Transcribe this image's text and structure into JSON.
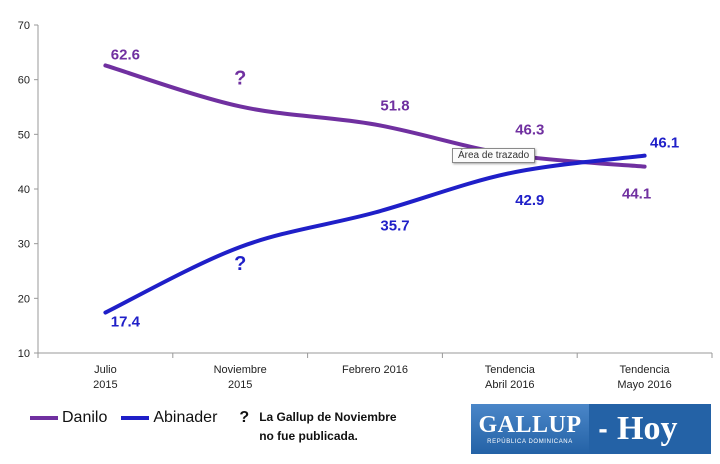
{
  "chart_data": {
    "type": "line",
    "categories": [
      [
        "Julio",
        "2015"
      ],
      [
        "Noviembre",
        "2015"
      ],
      [
        "Febrero 2016"
      ],
      [
        "Tendencia",
        "Abril 2016"
      ],
      [
        "Tendencia",
        "Mayo 2016"
      ]
    ],
    "series": [
      {
        "name": "Danilo",
        "color": "#7030a0",
        "values": [
          62.6,
          55.1,
          51.8,
          46.3,
          44.1
        ],
        "labels": [
          "62.6",
          "?",
          "51.8",
          "46.3",
          "44.1"
        ]
      },
      {
        "name": "Abinader",
        "color": "#1f1fc8",
        "values": [
          17.4,
          29.4,
          35.7,
          42.9,
          46.1
        ],
        "labels": [
          "17.4",
          "?",
          "35.7",
          "42.9",
          "46.1"
        ]
      }
    ],
    "ylim": [
      10,
      70
    ],
    "yticks": [
      10,
      20,
      30,
      40,
      50,
      60,
      70
    ],
    "grid": false,
    "legend_position": "bottom-left"
  },
  "note": {
    "mark": "?",
    "lines": [
      "La Gallup de Noviembre",
      "no fue publicada."
    ]
  },
  "tooltip": "Área de trazado",
  "logo": {
    "brand": "GALLUP",
    "subtitle": "REPÚBLICA DOMINICANA",
    "separator": "-",
    "outlet": "Hoy"
  }
}
